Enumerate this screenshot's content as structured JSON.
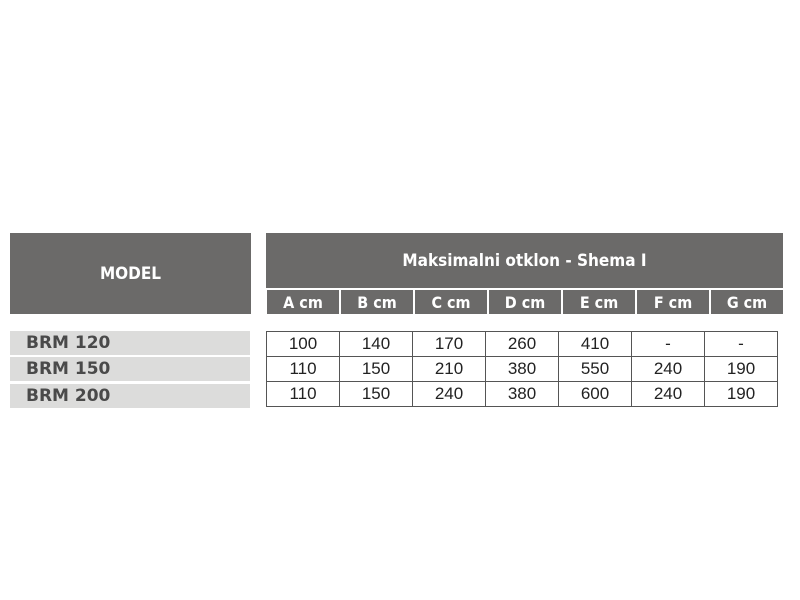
{
  "table": {
    "model_header": "MODEL",
    "group_header": "Maksimalni otklon - Shema I",
    "columns": [
      "A cm",
      "B cm",
      "C cm",
      "D cm",
      "E cm",
      "F cm",
      "G cm"
    ],
    "rows": [
      {
        "model": "BRM 120",
        "values": [
          "100",
          "140",
          "170",
          "260",
          "410",
          "-",
          "-"
        ]
      },
      {
        "model": "BRM 150",
        "values": [
          "110",
          "150",
          "210",
          "380",
          "550",
          "240",
          "190"
        ]
      },
      {
        "model": "BRM 200",
        "values": [
          "110",
          "150",
          "240",
          "380",
          "600",
          "240",
          "190"
        ]
      }
    ]
  },
  "colors": {
    "header_bg": "#6b6a69",
    "model_row_bg": "#dcdcdb"
  }
}
